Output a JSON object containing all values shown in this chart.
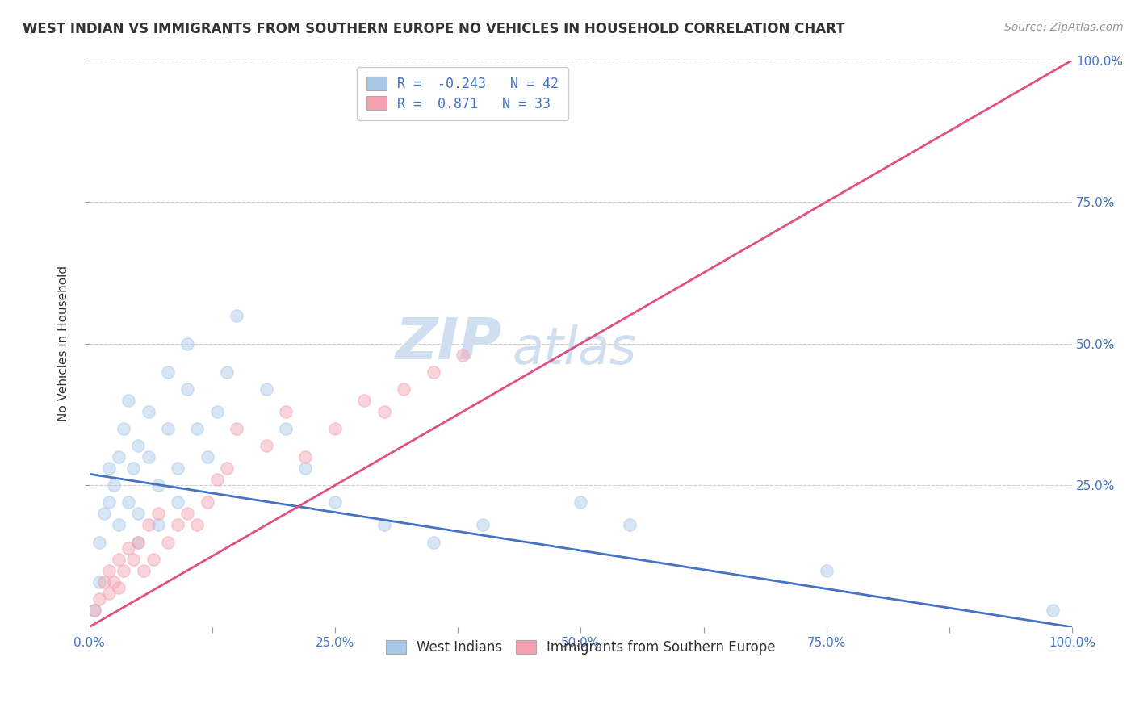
{
  "title": "WEST INDIAN VS IMMIGRANTS FROM SOUTHERN EUROPE NO VEHICLES IN HOUSEHOLD CORRELATION CHART",
  "source": "Source: ZipAtlas.com",
  "ylabel": "No Vehicles in Household",
  "legend_label_1": "West Indians",
  "legend_label_2": "Immigrants from Southern Europe",
  "R1": -0.243,
  "N1": 42,
  "R2": 0.871,
  "N2": 33,
  "color1": "#a8c8e8",
  "color2": "#f4a0b0",
  "line_color1": "#4472c4",
  "line_color2": "#e05080",
  "watermark_zip": "ZIP",
  "watermark_atlas": "atlas",
  "watermark_color": "#d0dff0",
  "background_color": "#ffffff",
  "grid_color": "#cccccc",
  "xlim": [
    0,
    100
  ],
  "ylim": [
    0,
    100
  ],
  "xtick_labels": [
    "0.0%",
    "",
    "25.0%",
    "",
    "50.0%",
    "",
    "75.0%",
    "",
    "100.0%"
  ],
  "xtick_vals": [
    0,
    12.5,
    25,
    37.5,
    50,
    62.5,
    75,
    87.5,
    100
  ],
  "ytick_labels": [
    "25.0%",
    "50.0%",
    "75.0%",
    "100.0%"
  ],
  "ytick_vals": [
    25,
    50,
    75,
    100
  ],
  "blue_x": [
    0.5,
    1,
    1,
    1.5,
    2,
    2,
    2.5,
    3,
    3,
    3.5,
    4,
    4,
    4.5,
    5,
    5,
    5,
    6,
    6,
    7,
    7,
    8,
    8,
    9,
    9,
    10,
    10,
    11,
    12,
    13,
    14,
    15,
    18,
    20,
    22,
    25,
    30,
    35,
    40,
    50,
    55,
    75,
    98
  ],
  "blue_y": [
    3,
    8,
    15,
    20,
    22,
    28,
    25,
    18,
    30,
    35,
    22,
    40,
    28,
    32,
    20,
    15,
    38,
    30,
    25,
    18,
    45,
    35,
    28,
    22,
    50,
    42,
    35,
    30,
    38,
    45,
    55,
    42,
    35,
    28,
    22,
    18,
    15,
    18,
    22,
    18,
    10,
    3
  ],
  "pink_x": [
    0.5,
    1,
    1.5,
    2,
    2,
    2.5,
    3,
    3,
    3.5,
    4,
    4.5,
    5,
    5.5,
    6,
    6.5,
    7,
    8,
    9,
    10,
    11,
    12,
    13,
    14,
    15,
    18,
    20,
    22,
    25,
    28,
    30,
    32,
    35,
    38
  ],
  "pink_y": [
    3,
    5,
    8,
    10,
    6,
    8,
    12,
    7,
    10,
    14,
    12,
    15,
    10,
    18,
    12,
    20,
    15,
    18,
    20,
    18,
    22,
    26,
    28,
    35,
    32,
    38,
    30,
    35,
    40,
    38,
    42,
    45,
    48
  ],
  "blue_line_x0": 0,
  "blue_line_y0": 27,
  "blue_line_x1": 100,
  "blue_line_y1": 0,
  "pink_line_x0": 0,
  "pink_line_y0": 0,
  "pink_line_x1": 100,
  "pink_line_y1": 100,
  "title_fontsize": 12,
  "axis_label_fontsize": 11,
  "tick_fontsize": 11,
  "legend_fontsize": 12,
  "source_fontsize": 10,
  "marker_size": 120,
  "marker_alpha": 0.45,
  "line_width": 2.0
}
